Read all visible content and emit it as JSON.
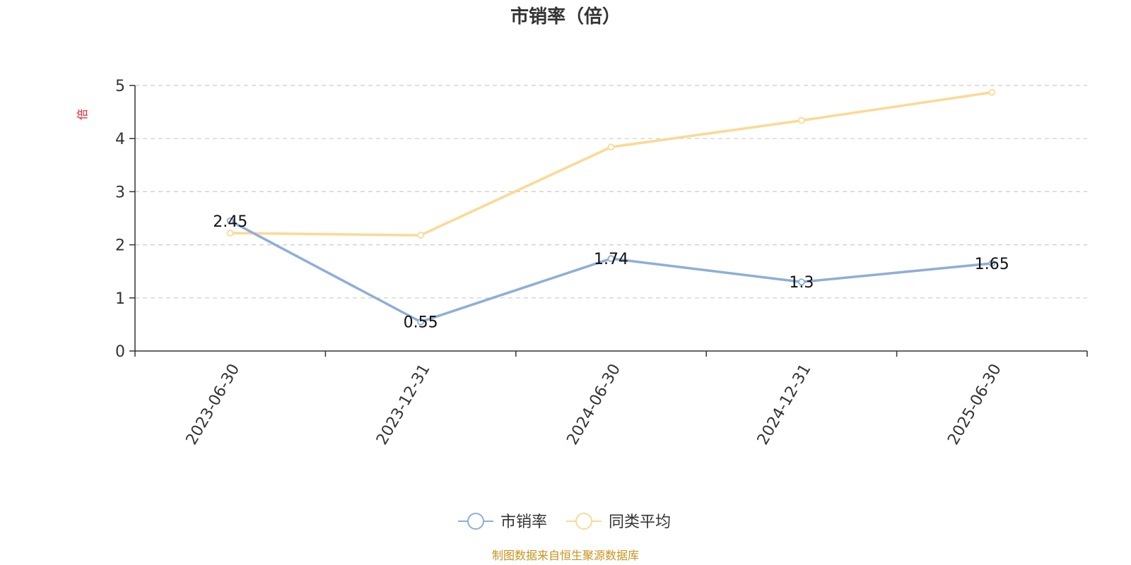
{
  "chart_data": {
    "type": "line",
    "title": "市销率（倍）",
    "ylabel": "倍",
    "xlabel": "",
    "categories": [
      "2023-06-30",
      "2023-12-31",
      "2024-06-30",
      "2024-12-31",
      "2025-06-30"
    ],
    "ylim": [
      0,
      5
    ],
    "yticks": [
      0,
      1,
      2,
      3,
      4,
      5
    ],
    "grid": true,
    "legend_position": "bottom-center",
    "series": [
      {
        "name": "市销率",
        "color": "#8eaed8",
        "values": [
          2.45,
          0.55,
          1.74,
          1.3,
          1.65
        ],
        "labels": [
          "2.45",
          "0.55",
          "1.74",
          "1.3",
          "1.65"
        ]
      },
      {
        "name": "同类平均",
        "color": "#fcd993",
        "values": [
          2.22,
          2.18,
          3.84,
          4.34,
          4.87
        ]
      }
    ]
  },
  "source_note": "制图数据来自恒生聚源数据库"
}
